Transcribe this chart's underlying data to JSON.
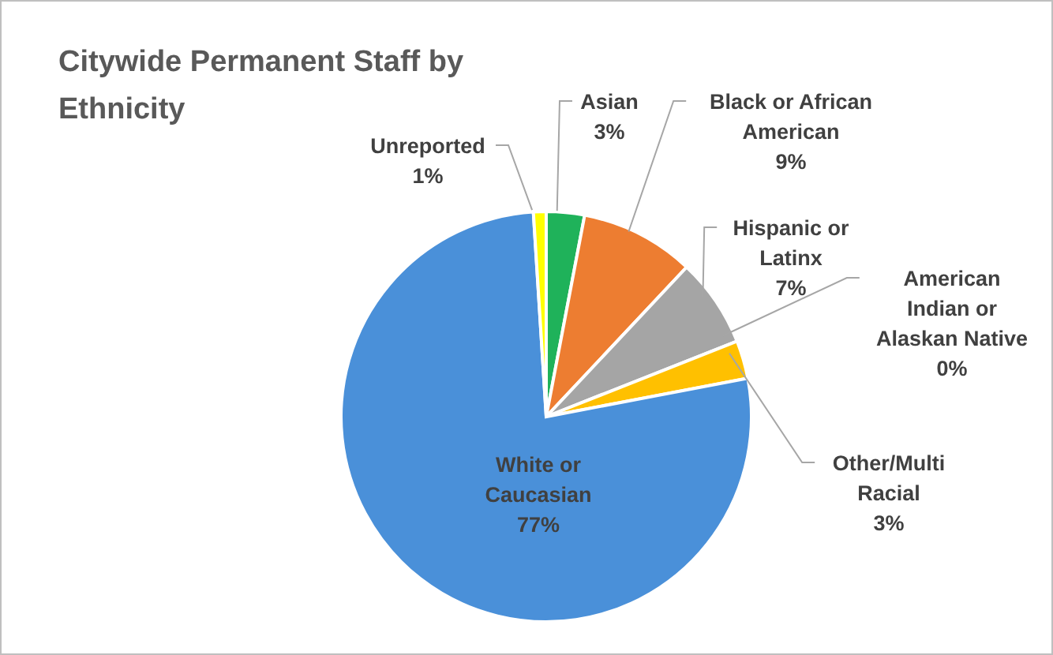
{
  "chart_data": {
    "type": "pie",
    "title": "Citywide Permanent Staff by Ethnicity",
    "categories": [
      "Asian",
      "Black or African American",
      "Hispanic or Latinx",
      "American Indian or Alaskan Native",
      "Other/Multi Racial",
      "White or Caucasian",
      "Unreported"
    ],
    "values": [
      3,
      9,
      7,
      0,
      3,
      77,
      1
    ],
    "value_labels": [
      "3%",
      "9%",
      "7%",
      "0%",
      "3%",
      "77%",
      "1%"
    ],
    "colors": [
      "#1fb25a",
      "#ed7d31",
      "#a5a5a5",
      "#9dc3e6",
      "#ffc000",
      "#4a90d9",
      "#ffff00"
    ],
    "legend": false
  }
}
